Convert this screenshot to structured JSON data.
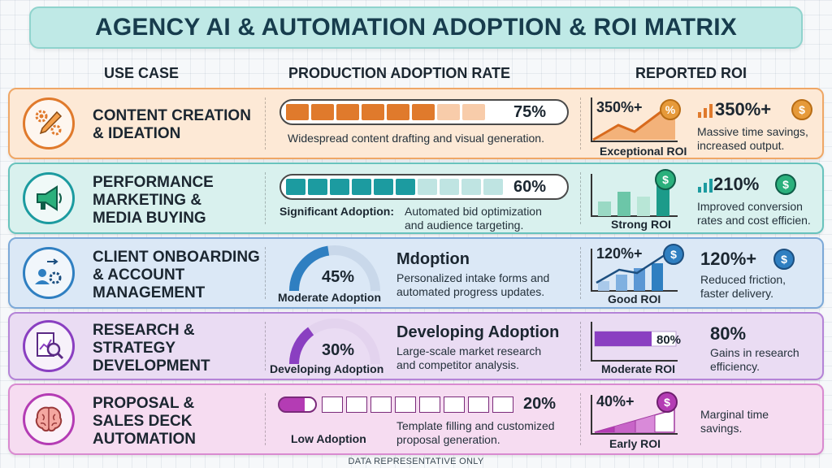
{
  "title": "AGENCY AI & AUTOMATION ADOPTION & ROI MATRIX",
  "headers": {
    "use_case": "USE CASE",
    "adoption": "PRODUCTION ADOPTION RATE",
    "roi": "REPORTED ROI"
  },
  "rows": [
    {
      "use_case": "CONTENT CREATION\n& IDEATION",
      "icon": "pencil-gears-icon",
      "adoption_pct": "75%",
      "adoption_value": 0.75,
      "adoption_desc": "Widespread content drafting and visual generation.",
      "chart_top": "350%+",
      "chart_label": "Exceptional ROI",
      "roi_value": "350%+",
      "roi_desc": "Massive time savings,\nincreased output.",
      "color": "#e07a2c"
    },
    {
      "use_case": "PERFORMANCE\nMARKETING &\nMEDIA BUYING",
      "icon": "megaphone-icon",
      "adoption_pct": "60%",
      "adoption_value": 0.6,
      "adoption_label": "Significant Adoption:",
      "adoption_desc": "Automated bid optimization\nand audience targeting.",
      "chart_label": "Strong ROI",
      "roi_value": "210%",
      "roi_desc": "Improved conversion\nrates and cost efficien.",
      "color": "#1c9ba0"
    },
    {
      "use_case": "CLIENT ONBOARDING\n& ACCOUNT\nMANAGEMENT",
      "icon": "onboarding-user-gear-icon",
      "adoption_pct": "45%",
      "adoption_value": 0.45,
      "adoption_label": "Moderate Adoption",
      "adoption_head": "Mdoption",
      "adoption_desc": "Personalized intake forms and\nautomated progress updates.",
      "chart_top": "120%+",
      "chart_label": "Good ROI",
      "roi_value": "120%+",
      "roi_desc": "Reduced friction,\nfaster delivery.",
      "color": "#2f7fc1"
    },
    {
      "use_case": "RESEARCH &\nSTRATEGY\nDEVELOPMENT",
      "icon": "document-magnifier-icon",
      "adoption_pct": "30%",
      "adoption_value": 0.3,
      "adoption_label": "Developing Adoption",
      "adoption_head": "Developing Adoption",
      "adoption_desc": "Large-scale market research\nand competitor analysis.",
      "chart_top": "80%",
      "chart_label": "Moderate ROI",
      "roi_value": "80%",
      "roi_desc": "Gains in research\nefficiency.",
      "color": "#8a3fc1"
    },
    {
      "use_case": "PROPOSAL &\nSALES DECK\nAUTOMATION",
      "icon": "brain-icon",
      "adoption_pct": "20%",
      "adoption_value": 0.2,
      "adoption_label": "Low Adoption",
      "adoption_desc": "Template filling and customized\nproposal generation.",
      "chart_top": "40%+",
      "chart_label": "Early ROI",
      "roi_desc": "Marginal time\nsavings.",
      "color": "#b43cb4"
    }
  ],
  "footer": "DATA REPRESENTATIVE ONLY"
}
